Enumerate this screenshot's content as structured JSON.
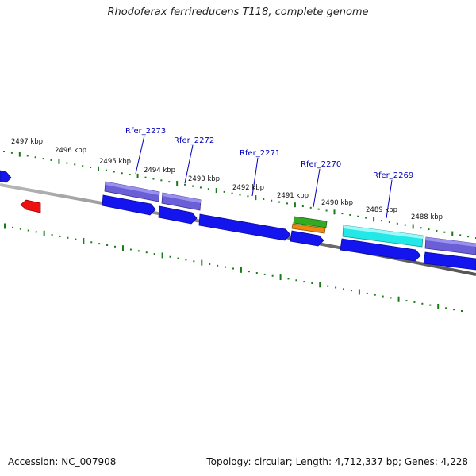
{
  "title": "Rhodoferax ferrireducens T118, complete genome",
  "footer": {
    "accession": "Accession: NC_007908",
    "summary": "Topology: circular; Length: 4,712,337 bp; Genes: 4,228"
  },
  "colors": {
    "backbone": "#7a7a7a",
    "tick": "#1a7a1a",
    "gene_blue": "#1414ee",
    "gene_purple": "#6a5fd6",
    "gene_cyan": "#22e8e8",
    "gene_green": "#33aa22",
    "gene_orange": "#ee8811",
    "gene_red": "#ee1111",
    "label_gene": "#0000bb",
    "label_kbp": "#111111"
  },
  "kbp_labels": [
    "2497 kbp",
    "2496 kbp",
    "2495 kbp",
    "2494 kbp",
    "2493 kbp",
    "2492 kbp",
    "2491 kbp",
    "2490 kbp",
    "2489 kbp",
    "2488 kbp"
  ],
  "gene_labels": [
    "Rfer_2273",
    "Rfer_2272",
    "Rfer_2271",
    "Rfer_2270",
    "Rfer_2269"
  ]
}
